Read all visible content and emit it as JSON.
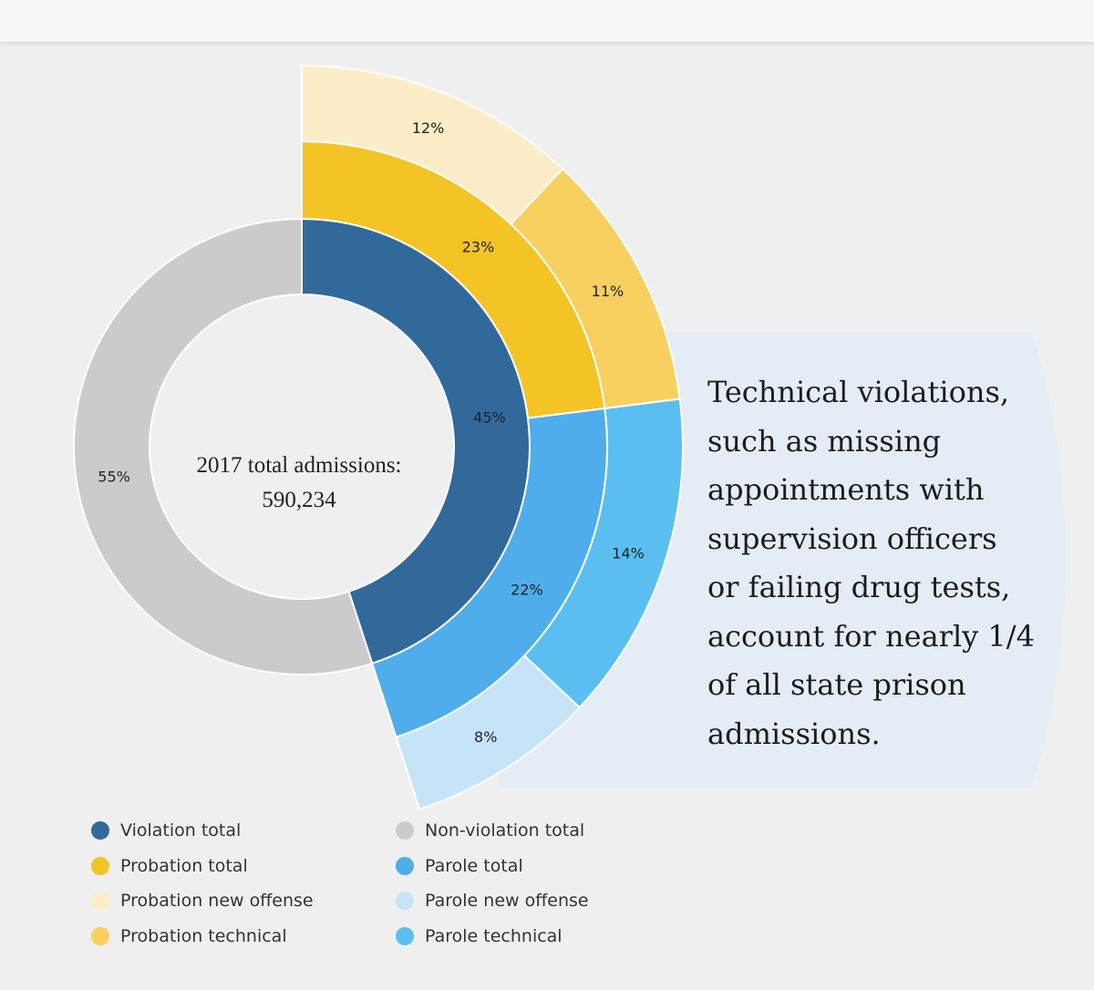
{
  "chart_data": {
    "type": "sunburst",
    "center_label": [
      "2017 total admissions:",
      "590,234"
    ],
    "rings": [
      {
        "name": "inner",
        "slices": [
          {
            "name": "Violation total",
            "value": 45,
            "label": "45%",
            "color": "#31699b"
          },
          {
            "name": "Non-violation total",
            "value": 55,
            "label": "55%",
            "color": "#cbcbcb"
          }
        ]
      },
      {
        "name": "middle",
        "slices": [
          {
            "name": "Probation total",
            "value": 23,
            "label": "23%",
            "color": "#f4c326"
          },
          {
            "name": "Parole total",
            "value": 22,
            "label": "22%",
            "color": "#4eadea"
          }
        ]
      },
      {
        "name": "outer",
        "slices": [
          {
            "name": "Probation new offense",
            "value": 12,
            "label": "12%",
            "color": "#fcecc8"
          },
          {
            "name": "Probation technical",
            "value": 11,
            "label": "11%",
            "color": "#f7d060"
          },
          {
            "name": "Parole technical",
            "value": 14,
            "label": "14%",
            "color": "#5abff0"
          },
          {
            "name": "Parole new offense",
            "value": 8,
            "label": "8%",
            "color": "#c5e4f8"
          }
        ]
      }
    ],
    "legend": [
      {
        "label": "Violation total",
        "color": "#31699b"
      },
      {
        "label": "Non-violation total",
        "color": "#cbcbcb"
      },
      {
        "label": "Probation total",
        "color": "#f4c326"
      },
      {
        "label": "Parole total",
        "color": "#4eadea"
      },
      {
        "label": "Probation new offense",
        "color": "#fcecc8"
      },
      {
        "label": "Parole new offense",
        "color": "#c5e4f8"
      },
      {
        "label": "Probation technical",
        "color": "#f7d060"
      },
      {
        "label": "Parole technical",
        "color": "#5abff0"
      }
    ]
  },
  "callout": {
    "text": "Technical violations, such as missing appointments with supervision officers or failing drug tests, account for nearly 1/4 of all state prison admissions.",
    "background": "#e4edf5"
  }
}
